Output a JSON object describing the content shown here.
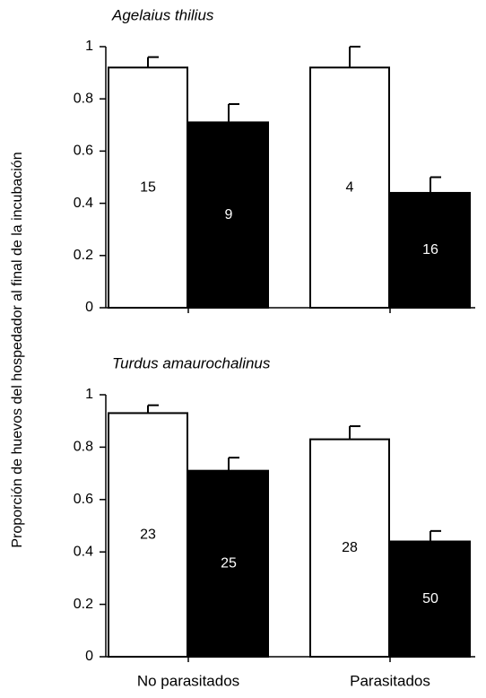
{
  "chart_data": [
    {
      "type": "bar",
      "title": "Agelaius thilius",
      "ylabel": "Proporción de huevos del hospedador al final de la incubación",
      "ylim": [
        0,
        1
      ],
      "yticks": [
        0,
        0.2,
        0.4,
        0.6,
        0.8,
        1
      ],
      "series": [
        {
          "color": "#ffffff",
          "values": [
            0.92,
            0.92
          ],
          "errors": [
            0.04,
            0.08
          ],
          "n": [
            "15",
            "4"
          ]
        },
        {
          "color": "#000000",
          "values": [
            0.71,
            0.44
          ],
          "errors": [
            0.07,
            0.06
          ],
          "n": [
            "9",
            "16"
          ]
        }
      ]
    },
    {
      "type": "bar",
      "title": "Turdus amaurochalinus",
      "categories": [
        "No parasitados",
        "Parasitados"
      ],
      "ylim": [
        0,
        1
      ],
      "yticks": [
        0,
        0.2,
        0.4,
        0.6,
        0.8,
        1
      ],
      "series": [
        {
          "color": "#ffffff",
          "values": [
            0.93,
            0.83
          ],
          "errors": [
            0.03,
            0.05
          ],
          "n": [
            "23",
            "28"
          ]
        },
        {
          "color": "#000000",
          "values": [
            0.71,
            0.44
          ],
          "errors": [
            0.05,
            0.04
          ],
          "n": [
            "25",
            "50"
          ]
        }
      ]
    }
  ]
}
